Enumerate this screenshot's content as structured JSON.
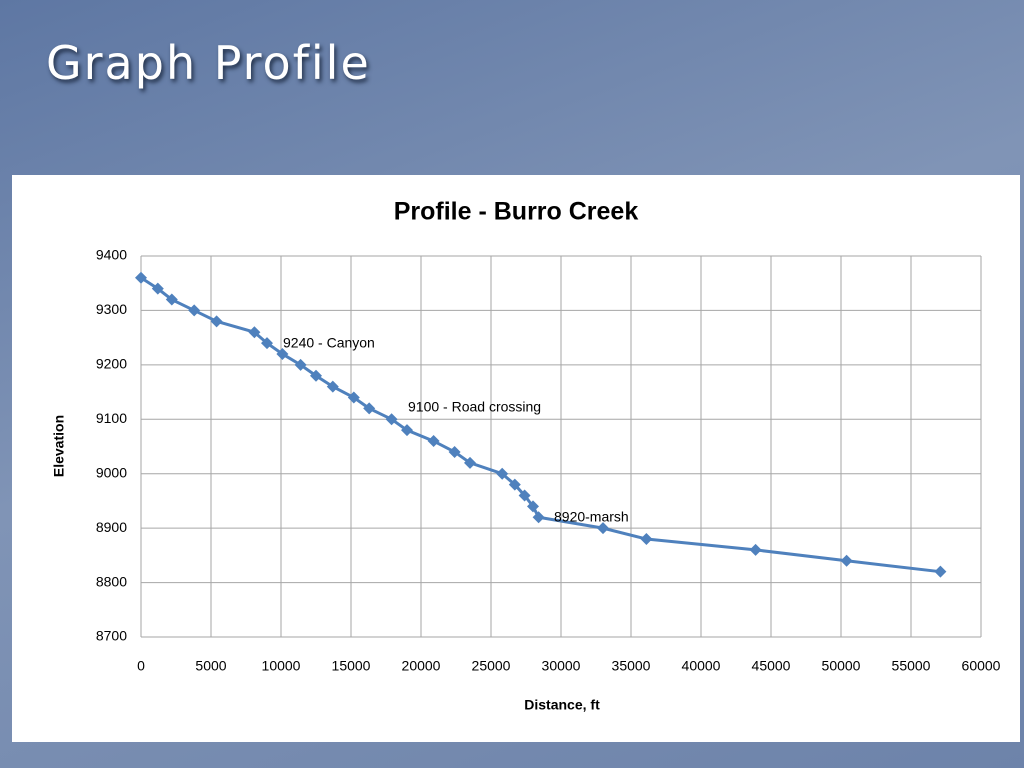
{
  "slide_title": "Graph Profile",
  "chart_data": {
    "type": "line",
    "title": "Profile - Burro Creek",
    "x_label": "Distance, ft",
    "y_label": "Elevation",
    "x": [
      0,
      1200,
      2200,
      3800,
      5400,
      8100,
      9000,
      10100,
      11400,
      12500,
      13700,
      15200,
      16300,
      17900,
      19000,
      20900,
      22400,
      23500,
      25800,
      26700,
      27400,
      28000,
      28400,
      33000,
      36100,
      43900,
      50400,
      57100
    ],
    "values": [
      9360,
      9340,
      9320,
      9300,
      9280,
      9260,
      9240,
      9220,
      9200,
      9180,
      9160,
      9140,
      9120,
      9100,
      9080,
      9060,
      9040,
      9020,
      9000,
      8980,
      8960,
      8940,
      8920,
      8900,
      8880,
      8860,
      8840,
      8820
    ],
    "color": "#4f81bd",
    "xlim": [
      0,
      60000
    ],
    "xticks": [
      0,
      5000,
      10000,
      15000,
      20000,
      25000,
      30000,
      35000,
      40000,
      45000,
      50000,
      55000,
      60000
    ],
    "ylim": [
      8700,
      9400
    ],
    "yticks": [
      8700,
      8800,
      8900,
      9000,
      9100,
      9200,
      9300,
      9400
    ],
    "grid": true,
    "annotations": [
      "9240 - Canyon",
      "9100 - Road crossing",
      "8920-marsh"
    ]
  }
}
